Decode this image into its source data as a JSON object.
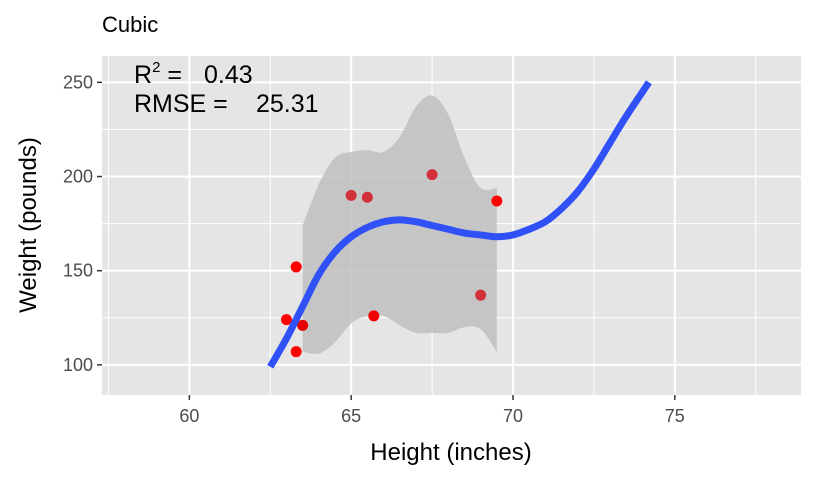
{
  "chart_data": {
    "type": "scatter",
    "title": "Cubic",
    "xlabel": "Height (inches)",
    "ylabel": "Weight (pounds)",
    "xlim": [
      57.3,
      78.9
    ],
    "ylim": [
      84,
      264
    ],
    "xticks": [
      60,
      65,
      70,
      75
    ],
    "yticks": [
      100,
      150,
      200,
      250
    ],
    "xtick_labels": [
      "60",
      "65",
      "70",
      "75"
    ],
    "ytick_labels": [
      "100",
      "150",
      "200",
      "250"
    ],
    "grid": true,
    "panel_color": "#e5e5e5",
    "grid_color": "#ffffff",
    "points": [
      {
        "x": 63.0,
        "y": 124,
        "color": "#ff0000"
      },
      {
        "x": 63.3,
        "y": 152,
        "color": "#ff0000"
      },
      {
        "x": 63.3,
        "y": 107,
        "color": "#ff0000"
      },
      {
        "x": 63.5,
        "y": 121,
        "color": "#e60000"
      },
      {
        "x": 65.0,
        "y": 190,
        "color": "#d2303a"
      },
      {
        "x": 65.5,
        "y": 189,
        "color": "#d2303a"
      },
      {
        "x": 65.7,
        "y": 126,
        "color": "#f00000"
      },
      {
        "x": 67.5,
        "y": 201,
        "color": "#d2303a"
      },
      {
        "x": 69.0,
        "y": 137,
        "color": "#d2303a"
      },
      {
        "x": 69.5,
        "y": 187,
        "color": "#ff0000"
      }
    ],
    "fit": {
      "name": "cubic",
      "color": "#3050f8",
      "x": [
        62.5,
        63,
        63.5,
        64,
        64.5,
        65,
        65.5,
        66,
        66.5,
        67,
        67.5,
        68,
        68.5,
        69,
        69.5,
        70,
        70.5,
        71,
        71.5,
        72,
        72.5,
        73,
        73.5,
        74.2
      ],
      "y": [
        99,
        114,
        131,
        148,
        160,
        168,
        173,
        176,
        177,
        176,
        174,
        172,
        170,
        169,
        168,
        169,
        172,
        176,
        183,
        192,
        204,
        218,
        232,
        250
      ]
    },
    "confidence_band": {
      "color": "#bfbfbf",
      "x": [
        63.5,
        64,
        64.5,
        65,
        65.5,
        66,
        66.5,
        67,
        67.5,
        68,
        68.5,
        69,
        69.5
      ],
      "upper": [
        174,
        196,
        210,
        213,
        214,
        213,
        221,
        237,
        243,
        233,
        210,
        194,
        194
      ],
      "lower": [
        107,
        106,
        112,
        122,
        126,
        126,
        121,
        117,
        117,
        117,
        120,
        119,
        107
      ]
    },
    "annotations": {
      "r2_label": "R",
      "r2_sup": "2",
      "r2_eq": " =",
      "r2_value": "0.43",
      "rmse_label": "RMSE",
      "rmse_eq": " =",
      "rmse_value": "25.31"
    }
  }
}
